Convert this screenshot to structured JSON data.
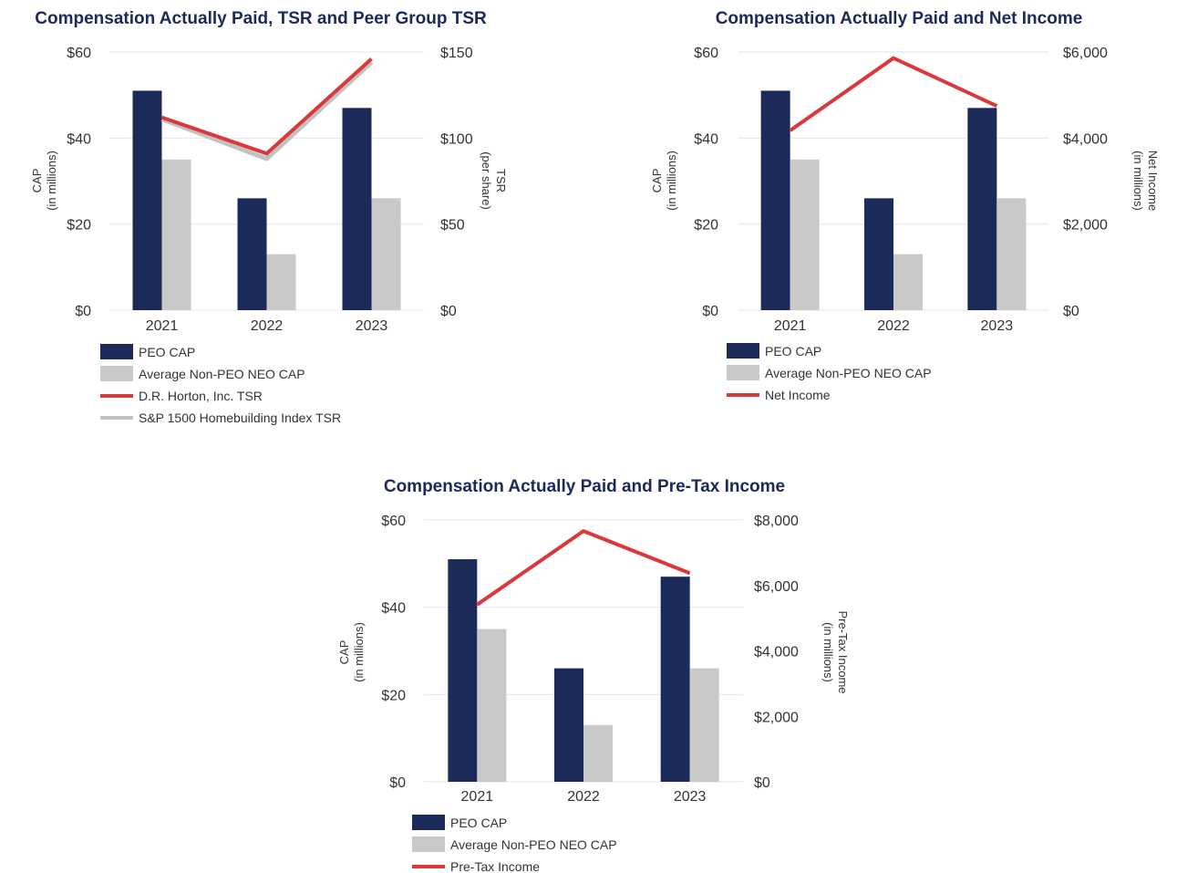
{
  "colors": {
    "peo_cap": "#1c2a5a",
    "non_peo_cap": "#c9c9c9",
    "red_line": "#d9393a",
    "grey_line": "#c2c2c2",
    "grid": "#e6e6e6"
  },
  "chart_data": [
    {
      "type": "bar",
      "title": "Compensation Actually Paid, TSR and Peer Group TSR",
      "categories": [
        "2021",
        "2022",
        "2023"
      ],
      "ylabel": [
        "CAP",
        "(in millions)"
      ],
      "y2label": [
        "TSR",
        "(per share)"
      ],
      "ylim": [
        0,
        60
      ],
      "y2lim": [
        0,
        150
      ],
      "yticks": [
        "$0",
        "$20",
        "$40",
        "$60"
      ],
      "y2ticks": [
        "$0",
        "$50",
        "$100",
        "$150"
      ],
      "grid": true,
      "legend_position": "bottom-left",
      "series": [
        {
          "name": "PEO CAP",
          "kind": "bar",
          "axis": "left",
          "values": [
            51,
            26,
            47
          ]
        },
        {
          "name": "Average Non-PEO NEO CAP",
          "kind": "bar",
          "axis": "left",
          "values": [
            35,
            13,
            26
          ]
        },
        {
          "name": "D.R. Horton, Inc. TSR",
          "kind": "line",
          "axis": "right",
          "values": [
            112,
            91,
            146
          ]
        },
        {
          "name": "S&P 1500 Homebuilding Index TSR",
          "kind": "line",
          "axis": "right",
          "values": [
            111,
            88,
            144
          ]
        }
      ]
    },
    {
      "type": "bar",
      "title": "Compensation Actually Paid and Net Income",
      "categories": [
        "2021",
        "2022",
        "2023"
      ],
      "ylabel": [
        "CAP",
        "(in millions)"
      ],
      "y2label": [
        "Net Income",
        "(in millions)"
      ],
      "ylim": [
        0,
        60
      ],
      "y2lim": [
        0,
        6000
      ],
      "yticks": [
        "$0",
        "$20",
        "$40",
        "$60"
      ],
      "y2ticks": [
        "$0",
        "$2,000",
        "$4,000",
        "$6,000"
      ],
      "grid": true,
      "legend_position": "bottom-left",
      "series": [
        {
          "name": "PEO CAP",
          "kind": "bar",
          "axis": "left",
          "values": [
            51,
            26,
            47
          ]
        },
        {
          "name": "Average Non-PEO NEO CAP",
          "kind": "bar",
          "axis": "left",
          "values": [
            35,
            13,
            26
          ]
        },
        {
          "name": "Net Income",
          "kind": "line",
          "axis": "right",
          "values": [
            4175,
            5858,
            4746
          ]
        }
      ]
    },
    {
      "type": "bar",
      "title": "Compensation Actually Paid and Pre-Tax Income",
      "categories": [
        "2021",
        "2022",
        "2023"
      ],
      "ylabel": [
        "CAP",
        "(in millions)"
      ],
      "y2label": [
        "Pre-Tax Income",
        "(in millions)"
      ],
      "ylim": [
        0,
        60
      ],
      "y2lim": [
        0,
        8000
      ],
      "yticks": [
        "$0",
        "$20",
        "$40",
        "$60"
      ],
      "y2ticks": [
        "$0",
        "$2,000",
        "$4,000",
        "$6,000",
        "$8,000"
      ],
      "grid": true,
      "legend_position": "bottom-left",
      "series": [
        {
          "name": "PEO CAP",
          "kind": "bar",
          "axis": "left",
          "values": [
            51,
            26,
            47
          ]
        },
        {
          "name": "Average Non-PEO NEO CAP",
          "kind": "bar",
          "axis": "left",
          "values": [
            35,
            13,
            26
          ]
        },
        {
          "name": "Pre-Tax Income",
          "kind": "line",
          "axis": "right",
          "values": [
            5413,
            7661,
            6373
          ]
        }
      ]
    }
  ]
}
